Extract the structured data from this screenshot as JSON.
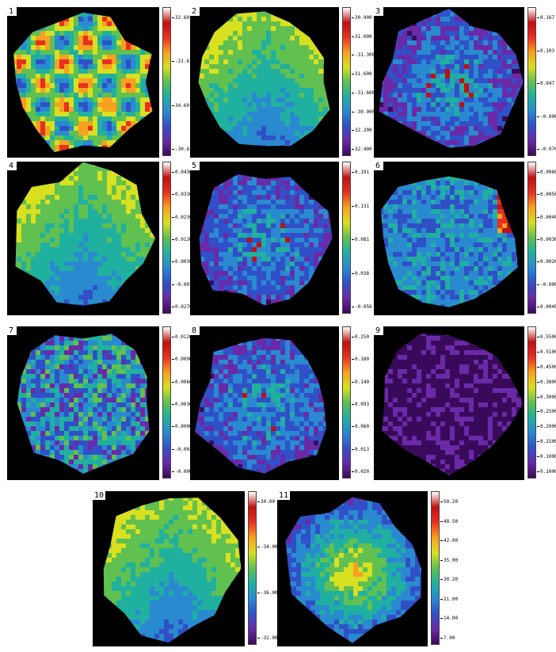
{
  "figure": {
    "colormap": [
      "#3a0a5a",
      "#6a2aa8",
      "#3050c8",
      "#2a8ad0",
      "#20b0a0",
      "#60c050",
      "#d8e020",
      "#f8a020",
      "#e83020",
      "#c01010",
      "#ffffff"
    ],
    "background_color": "#000000",
    "panels": [
      {
        "label": "1",
        "ticks": [
          "32.60",
          "-31.61",
          "34.60",
          "-30.61"
        ],
        "pattern": "grid"
      },
      {
        "label": "2",
        "ticks": [
          "30.900",
          "31.000",
          "-31.300",
          "31.600",
          "-31.600",
          "-30.900",
          "32.200",
          "32.400"
        ],
        "pattern": "stripes"
      },
      {
        "label": "3",
        "ticks": [
          "0.167",
          "0.103",
          "0.047",
          "-0.006",
          "-0.070"
        ],
        "pattern": "clusters"
      },
      {
        "label": "4",
        "ticks": [
          "0.0430",
          "0.0330",
          "0.0230",
          "0.0130",
          "0.0030",
          "-0.0070",
          "0.0270"
        ],
        "pattern": "stripes"
      },
      {
        "label": "5",
        "ticks": [
          "0.191",
          "0.131",
          "0.081",
          "0.038",
          "-0.056"
        ],
        "pattern": "clusters"
      },
      {
        "label": "6",
        "ticks": [
          "0.00600",
          "0.00500",
          "0.00400",
          "0.00300",
          "0.00200",
          "-0.00000",
          "0.00400"
        ],
        "pattern": "edge"
      },
      {
        "label": "7",
        "ticks": [
          "0.01200",
          "0.00900",
          "0.00600",
          "0.00300",
          "0.00000",
          "-0.00300",
          "-0.00600"
        ],
        "pattern": "noise"
      },
      {
        "label": "8",
        "ticks": [
          "0.250",
          "0.180",
          "0.140",
          "0.093",
          "0.060",
          "0.013",
          "0.020"
        ],
        "pattern": "clusters"
      },
      {
        "label": "9",
        "ticks": [
          "0.5500",
          "0.5100",
          "0.4500",
          "0.3800",
          "0.3000",
          "0.2500",
          "0.2000",
          "0.1500",
          "0.1000",
          "0.1000"
        ],
        "pattern": "dark"
      },
      {
        "label": "10",
        "ticks": [
          "30.00",
          "-34.00",
          "-36.00",
          "-32.00"
        ],
        "pattern": "stripes"
      },
      {
        "label": "11",
        "ticks": [
          "50.20",
          "48.50",
          "42.00",
          "35.00",
          "30.20",
          "21.00",
          "14.00",
          "7.00"
        ],
        "pattern": "radial"
      }
    ]
  }
}
